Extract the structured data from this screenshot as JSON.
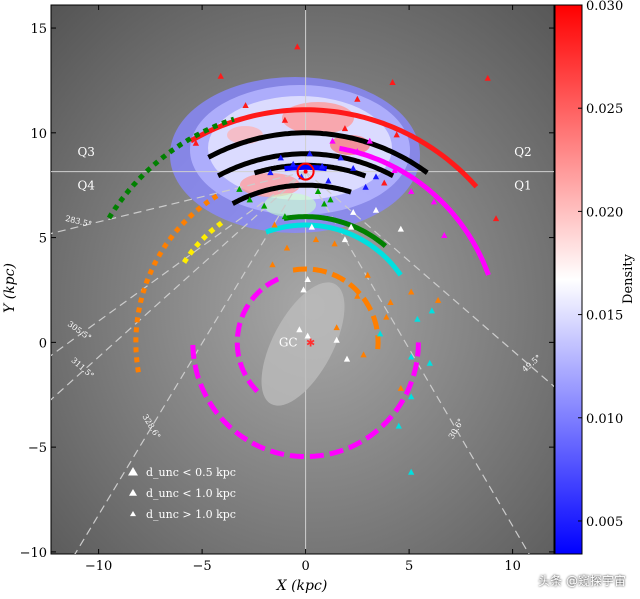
{
  "chart_data": {
    "type": "scatter",
    "xlabel": "X (kpc)",
    "ylabel": "Y (kpc)",
    "xlim": [
      -12.3,
      12.0
    ],
    "ylim": [
      -10.1,
      16.1
    ],
    "x_ticks": [
      -10,
      -5,
      0,
      5,
      10
    ],
    "y_ticks": [
      -10,
      -5,
      0,
      5,
      10,
      15
    ],
    "grid": false,
    "sun": [
      0,
      8.15
    ],
    "galactic_center_label": "GC",
    "quadrant_labels": [
      {
        "text": "Q3",
        "x": -10.6,
        "y": 8.9
      },
      {
        "text": "Q2",
        "x": 10.5,
        "y": 8.9
      },
      {
        "text": "Q4",
        "x": -10.6,
        "y": 7.3
      },
      {
        "text": "Q1",
        "x": 10.5,
        "y": 7.3
      }
    ],
    "sightlines": [
      {
        "label": "283.5°",
        "angle": 283.5
      },
      {
        "label": "305.5°",
        "angle": 305.5
      },
      {
        "label": "311.5°",
        "angle": 311.5
      },
      {
        "label": "328.6°",
        "angle": 328.6
      },
      {
        "label": "30.6°",
        "angle": 30.6
      },
      {
        "label": "49.5°",
        "angle": 49.5
      }
    ],
    "arms": [
      {
        "color": "#ff1a1a",
        "style": "solid",
        "r": 11.1,
        "phi_range": [
          -30,
          48
        ]
      },
      {
        "color": "#000000",
        "style": "solid",
        "r": 10.0,
        "phi_range": [
          -28,
          36
        ]
      },
      {
        "color": "#000000",
        "style": "solid",
        "r": 9.0,
        "phi_range": [
          -28,
          28
        ]
      },
      {
        "color": "#000000",
        "style": "solid",
        "r": 8.45,
        "phi_range": [
          -17,
          20
        ]
      },
      {
        "color": "#0000ff",
        "style": "solid",
        "r": 8.35,
        "phi_range": [
          -7,
          7
        ]
      },
      {
        "color": "#000000",
        "style": "solid",
        "r": 7.5,
        "phi_range": [
          -28,
          17
        ]
      },
      {
        "color": "#ff00ff",
        "style": "solid",
        "r": 9.4,
        "phi_range": [
          10,
          70
        ]
      },
      {
        "color": "#ff00ff",
        "style": "dashed",
        "r": 5.45,
        "phi_range": [
          90,
          270
        ]
      },
      {
        "color": "#ff00ff",
        "style": "dashed",
        "r": 3.3,
        "phi_range": [
          225,
          340
        ]
      },
      {
        "color": "#00e0e0",
        "style": "solid",
        "r": 5.6,
        "phi_range": [
          -20,
          55
        ]
      },
      {
        "color": "#008000",
        "style": "dotted",
        "r": 11.2,
        "phi_range": [
          -58,
          -18
        ]
      },
      {
        "color": "#ffee00",
        "style": "dotted",
        "r": 7.0,
        "phi_range": [
          -57,
          -35
        ]
      },
      {
        "color": "#ff7f00",
        "style": "dotted",
        "r": 8.2,
        "phi_range": [
          -100,
          -30
        ]
      },
      {
        "color": "#ff7f00",
        "style": "dashed",
        "r": 3.5,
        "phi_range": [
          -10,
          100
        ]
      },
      {
        "color": "#008000",
        "style": "solid",
        "r": 6.0,
        "phi_range": [
          -10,
          40
        ]
      }
    ],
    "points_red": [
      [
        -0.4,
        14.1
      ],
      [
        -4.1,
        12.7
      ],
      [
        4.2,
        12.4
      ],
      [
        -2.9,
        11.3
      ],
      [
        2.5,
        11.6
      ],
      [
        -1.0,
        10.6
      ],
      [
        1.9,
        10.2
      ],
      [
        -5.3,
        9.5
      ],
      [
        4.4,
        9.9
      ],
      [
        8.8,
        12.6
      ],
      [
        9.2,
        5.9
      ],
      [
        3.8,
        7.6
      ]
    ],
    "points_blue": [
      [
        -1.2,
        8.8
      ],
      [
        -0.6,
        8.5
      ],
      [
        0.2,
        9.0
      ],
      [
        0.8,
        8.4
      ],
      [
        1.7,
        8.8
      ],
      [
        2.3,
        8.3
      ],
      [
        -0.2,
        7.9
      ],
      [
        1.1,
        7.7
      ],
      [
        3.4,
        7.9
      ],
      [
        -1.7,
        8.1
      ],
      [
        2.9,
        7.4
      ]
    ],
    "points_magenta": [
      [
        1.3,
        9.6
      ],
      [
        3.1,
        9.6
      ],
      [
        4.3,
        8.2
      ],
      [
        5.1,
        7.2
      ],
      [
        2.5,
        9.1
      ],
      [
        6.2,
        6.7
      ],
      [
        6.7,
        5.1
      ]
    ],
    "points_green": [
      [
        -3.2,
        7.3
      ],
      [
        -2.7,
        6.8
      ],
      [
        -2.0,
        6.5
      ],
      [
        0.6,
        7.2
      ],
      [
        0.9,
        6.6
      ],
      [
        1.2,
        6.8
      ],
      [
        -1.0,
        6.0
      ]
    ],
    "points_orange": [
      [
        -1.5,
        5.6
      ],
      [
        0.5,
        4.9
      ],
      [
        1.4,
        4.7
      ],
      [
        3.0,
        3.2
      ],
      [
        2.5,
        2.2
      ],
      [
        4.1,
        1.9
      ],
      [
        1.5,
        0.7
      ],
      [
        2.8,
        -0.6
      ],
      [
        3.9,
        1.2
      ],
      [
        4.6,
        -2.2
      ],
      [
        -0.9,
        4.5
      ],
      [
        -1.6,
        3.7
      ],
      [
        5.1,
        2.4
      ],
      [
        6.4,
        2.0
      ]
    ],
    "points_white": [
      [
        1.9,
        4.9
      ],
      [
        2.2,
        5.5
      ],
      [
        3.4,
        6.3
      ],
      [
        2.3,
        6.2
      ],
      [
        0.1,
        3.0
      ],
      [
        -0.1,
        2.5
      ],
      [
        1.5,
        0.1
      ],
      [
        0.1,
        0.3
      ],
      [
        2.0,
        -0.8
      ],
      [
        -0.3,
        0.6
      ],
      [
        0.3,
        5.5
      ],
      [
        4.6,
        5.4
      ]
    ],
    "points_cyan": [
      [
        5.1,
        -2.6
      ],
      [
        5.4,
        1.1
      ],
      [
        6.0,
        -1.0
      ],
      [
        4.5,
        -4.0
      ],
      [
        5.1,
        -6.2
      ],
      [
        6.1,
        1.5
      ],
      [
        3.6,
        0.4
      ],
      [
        5.1,
        -0.7
      ]
    ],
    "legend": [
      {
        "label": "d_unc < 0.5 kpc",
        "marker_size": "large"
      },
      {
        "label": "d_unc < 1.0 kpc",
        "marker_size": "medium"
      },
      {
        "label": "d_unc > 1.0 kpc",
        "marker_size": "small"
      }
    ],
    "colorbar": {
      "label": "Density",
      "min": 0.0034,
      "max": 0.03,
      "ticks": [
        0.005,
        0.01,
        0.015,
        0.02,
        0.025,
        0.03
      ],
      "tick_labels": [
        "0.005",
        "0.010",
        "0.015",
        "0.020",
        "0.025",
        "0.030"
      ],
      "colormap": "bwr"
    }
  },
  "watermark": "头条 @窥探宇宙"
}
